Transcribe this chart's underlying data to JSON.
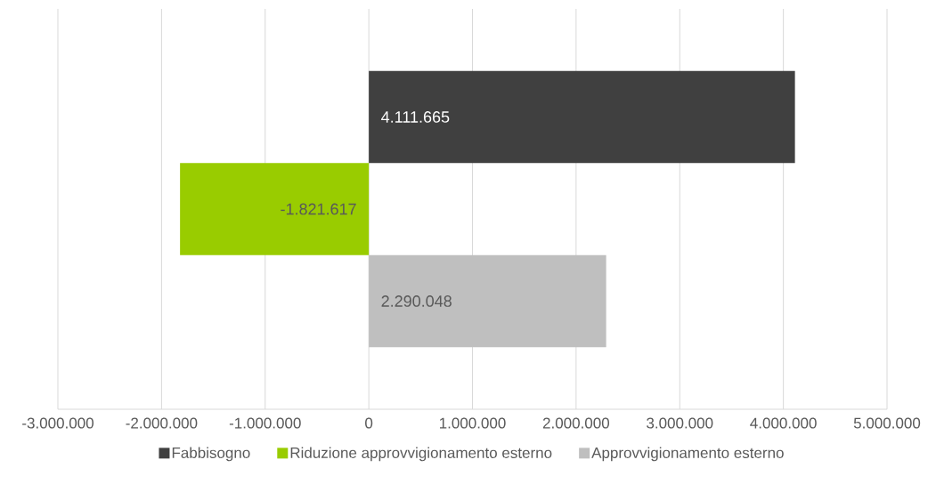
{
  "chart_data": {
    "type": "bar",
    "orientation": "horizontal",
    "categories": [
      null
    ],
    "series": [
      {
        "name": "Fabbisogno",
        "color": "#404040",
        "values": [
          4111665
        ],
        "value_labels": [
          "4.111.665"
        ]
      },
      {
        "name": "Riduzione approvvigionamento esterno",
        "color": "#99cc00",
        "values": [
          -1821617
        ],
        "value_labels": [
          "-1.821.617"
        ]
      },
      {
        "name": "Approvvigionamento esterno",
        "color": "#bfbfbf",
        "values": [
          2290048
        ],
        "value_labels": [
          "2.290.048"
        ]
      }
    ],
    "xlim": [
      -3000000,
      5000000
    ],
    "xticks": [
      {
        "value": -3000000,
        "label": "-3.000.000"
      },
      {
        "value": -2000000,
        "label": "-2.000.000"
      },
      {
        "value": -1000000,
        "label": "-1.000.000"
      },
      {
        "value": 0,
        "label": "0"
      },
      {
        "value": 1000000,
        "label": "1.000.000"
      },
      {
        "value": 2000000,
        "label": "2.000.000"
      },
      {
        "value": 3000000,
        "label": "3.000.000"
      },
      {
        "value": 4000000,
        "label": "4.000.000"
      },
      {
        "value": 5000000,
        "label": "5.000.000"
      }
    ],
    "grid": "x",
    "legend": "bottom"
  }
}
